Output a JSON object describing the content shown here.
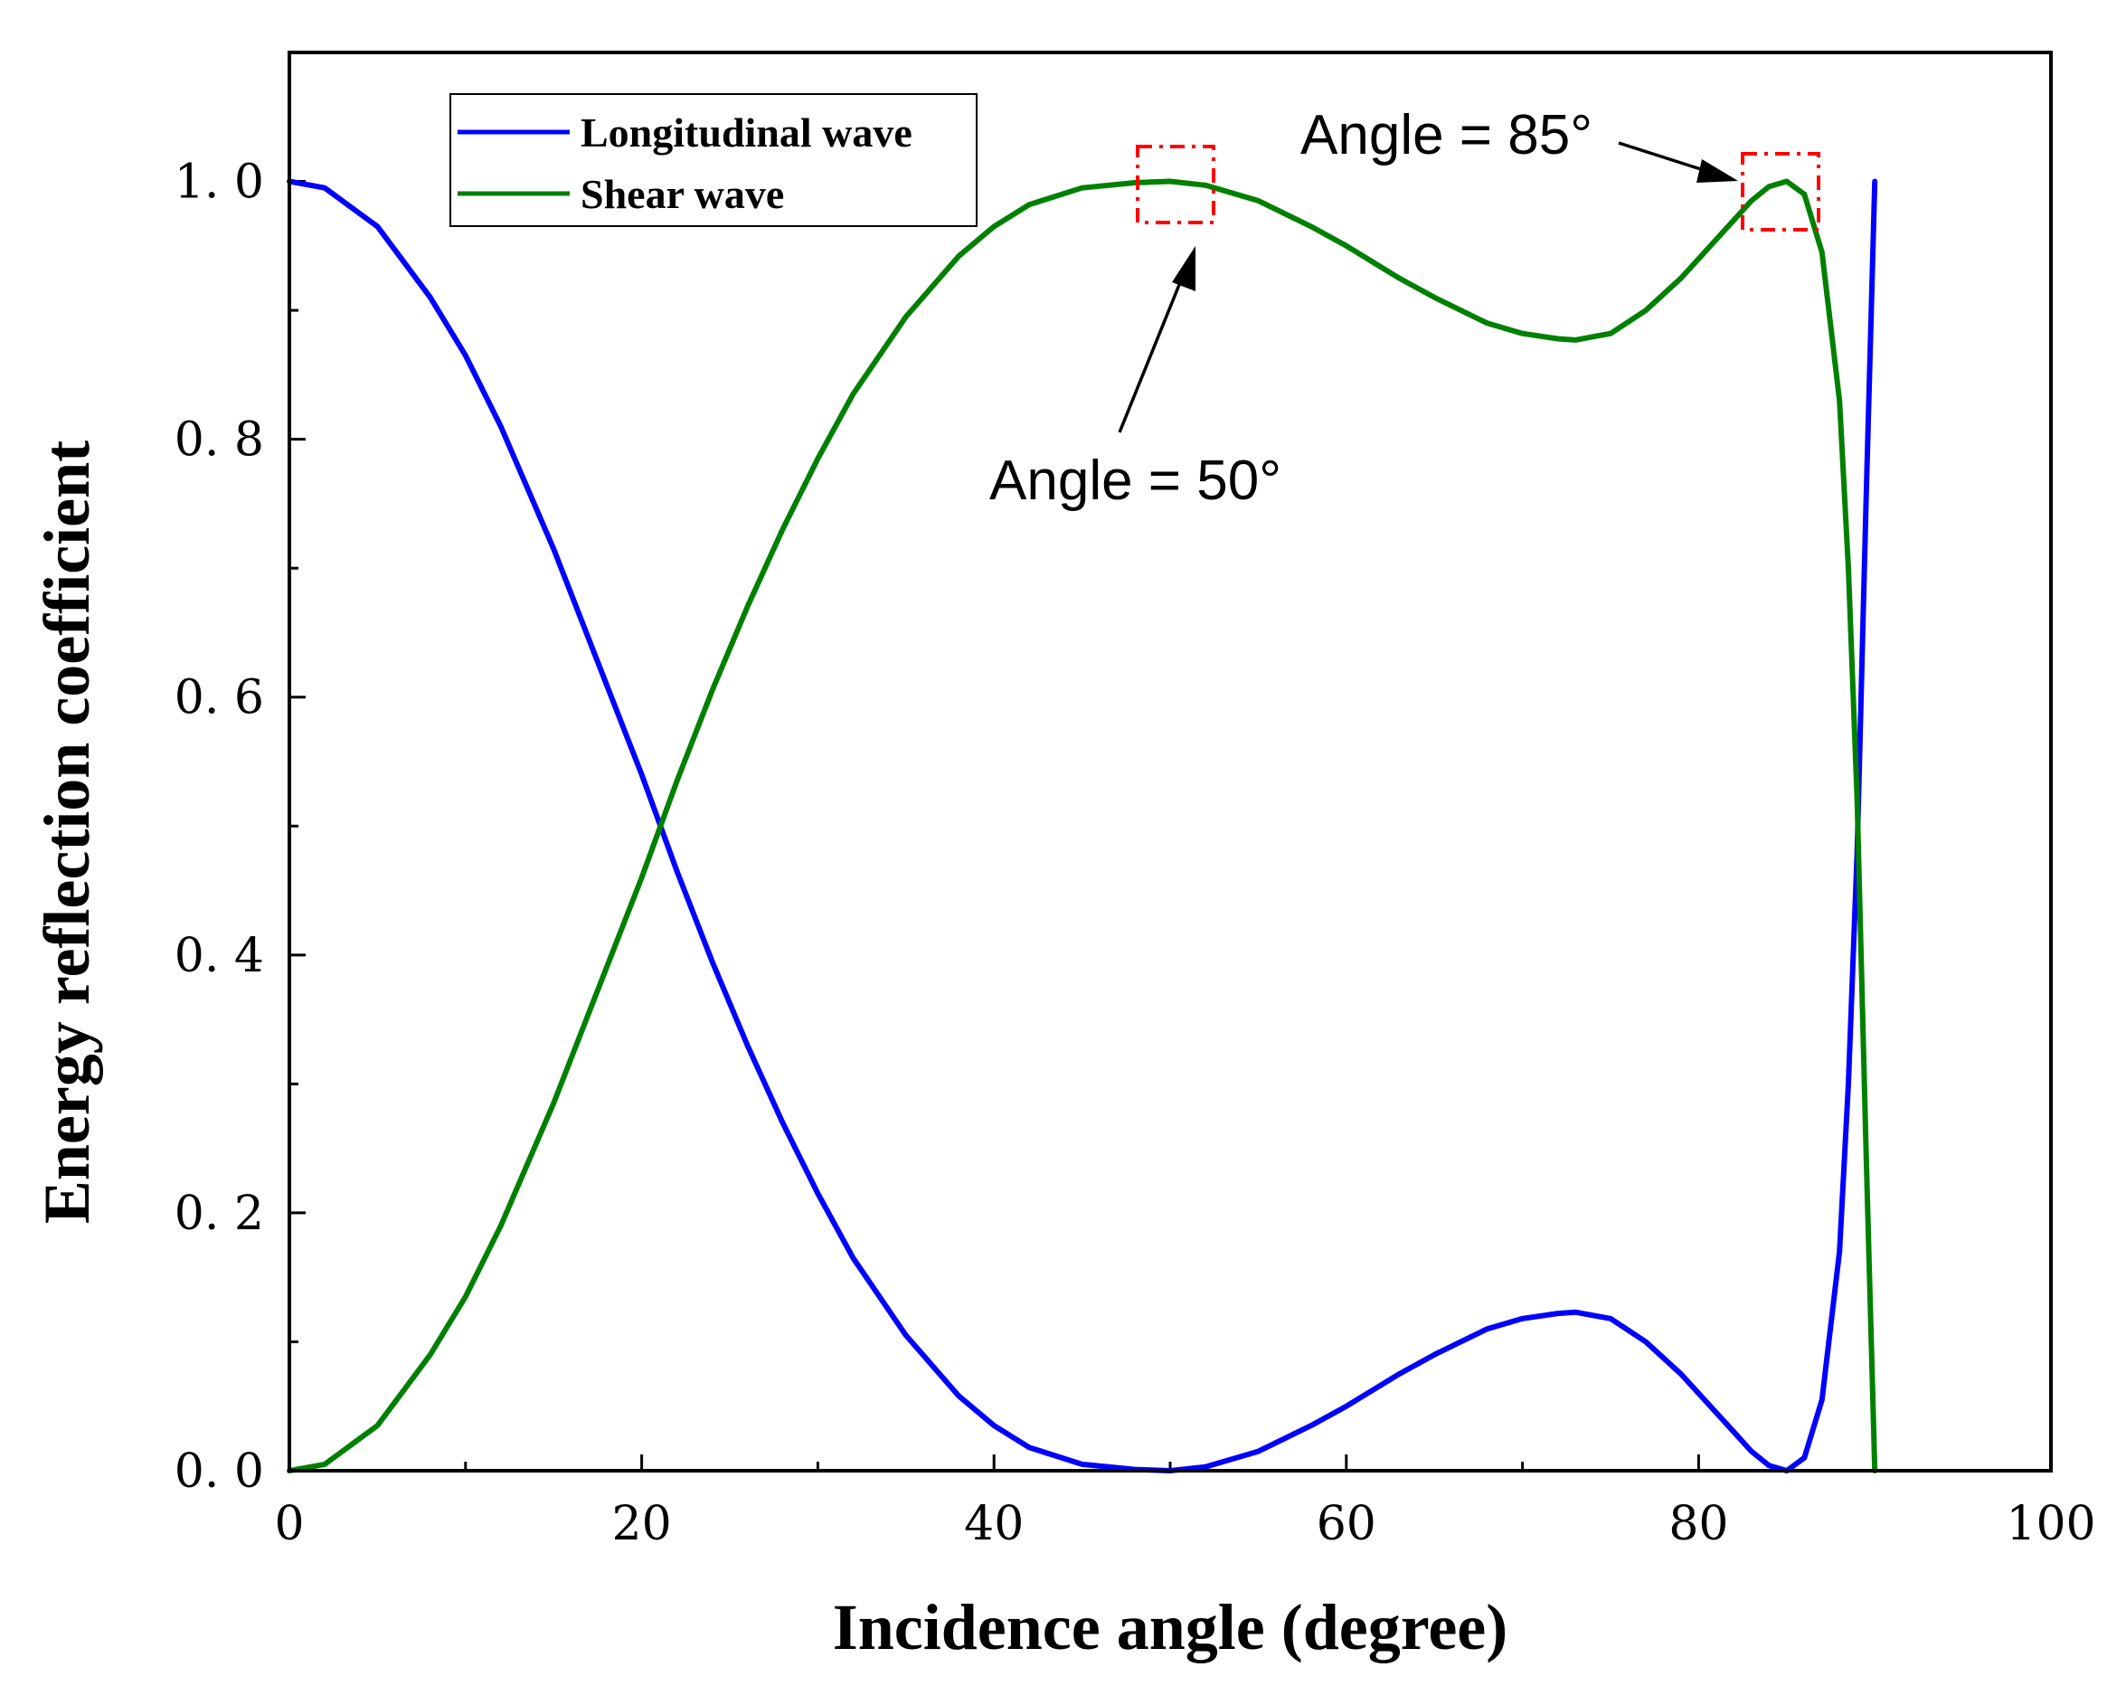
{
  "chart_data": {
    "type": "line",
    "title": "",
    "xlabel": "Incidence angle (degree)",
    "ylabel": "Energy reflection coefficient",
    "xlim": [
      0,
      100
    ],
    "ylim": [
      0,
      1.1
    ],
    "x_ticks": [
      0,
      20,
      40,
      60,
      80,
      100
    ],
    "x_tick_labels": [
      "0",
      "20",
      "40",
      "60",
      "80",
      "100"
    ],
    "y_ticks": [
      0,
      0.2,
      0.4,
      0.6,
      0.8,
      1.0
    ],
    "y_tick_labels": [
      "0. 0",
      "0. 2",
      "0. 4",
      "0. 6",
      "0. 8",
      "1. 0"
    ],
    "legend_position": "top-left",
    "series": [
      {
        "name": "Longitudinal wave",
        "color": "#0000ff",
        "x": [
          0,
          2,
          5,
          8,
          10,
          12,
          15,
          18,
          20,
          22,
          24,
          26,
          28,
          30,
          32,
          35,
          38,
          40,
          42,
          45,
          48,
          50,
          52,
          55,
          58,
          60,
          63,
          65,
          68,
          70,
          72,
          73,
          75,
          77,
          79,
          80,
          82,
          83,
          84,
          85,
          86,
          87,
          88,
          88.5,
          89,
          89.5,
          90
        ],
        "y": [
          1.0,
          0.995,
          0.965,
          0.91,
          0.865,
          0.81,
          0.715,
          0.61,
          0.54,
          0.465,
          0.395,
          0.33,
          0.27,
          0.215,
          0.165,
          0.105,
          0.058,
          0.035,
          0.018,
          0.005,
          0.001,
          0.0,
          0.003,
          0.015,
          0.035,
          0.05,
          0.075,
          0.09,
          0.11,
          0.118,
          0.122,
          0.123,
          0.118,
          0.1,
          0.075,
          0.06,
          0.03,
          0.015,
          0.004,
          0.0,
          0.01,
          0.055,
          0.17,
          0.3,
          0.48,
          0.75,
          1.0
        ]
      },
      {
        "name": "Shear wave",
        "color": "#008000",
        "x": [
          0,
          2,
          5,
          8,
          10,
          12,
          15,
          18,
          20,
          22,
          24,
          26,
          28,
          30,
          32,
          35,
          38,
          40,
          42,
          45,
          48,
          50,
          52,
          55,
          58,
          60,
          63,
          65,
          68,
          70,
          72,
          73,
          75,
          77,
          79,
          80,
          82,
          83,
          84,
          85,
          86,
          87,
          88,
          88.5,
          89,
          89.5,
          90
        ],
        "y": [
          0.0,
          0.005,
          0.035,
          0.09,
          0.135,
          0.19,
          0.285,
          0.39,
          0.46,
          0.535,
          0.605,
          0.67,
          0.73,
          0.785,
          0.835,
          0.895,
          0.942,
          0.965,
          0.982,
          0.995,
          0.999,
          1.0,
          0.997,
          0.985,
          0.965,
          0.95,
          0.925,
          0.91,
          0.89,
          0.882,
          0.878,
          0.877,
          0.882,
          0.9,
          0.925,
          0.94,
          0.97,
          0.985,
          0.996,
          1.0,
          0.99,
          0.945,
          0.83,
          0.7,
          0.52,
          0.25,
          0.0
        ]
      }
    ],
    "annotations": [
      {
        "text": "Angle = 50°",
        "x": 50,
        "y": 1.0
      },
      {
        "text": "Angle = 85°",
        "x": 85,
        "y": 1.0
      }
    ]
  }
}
